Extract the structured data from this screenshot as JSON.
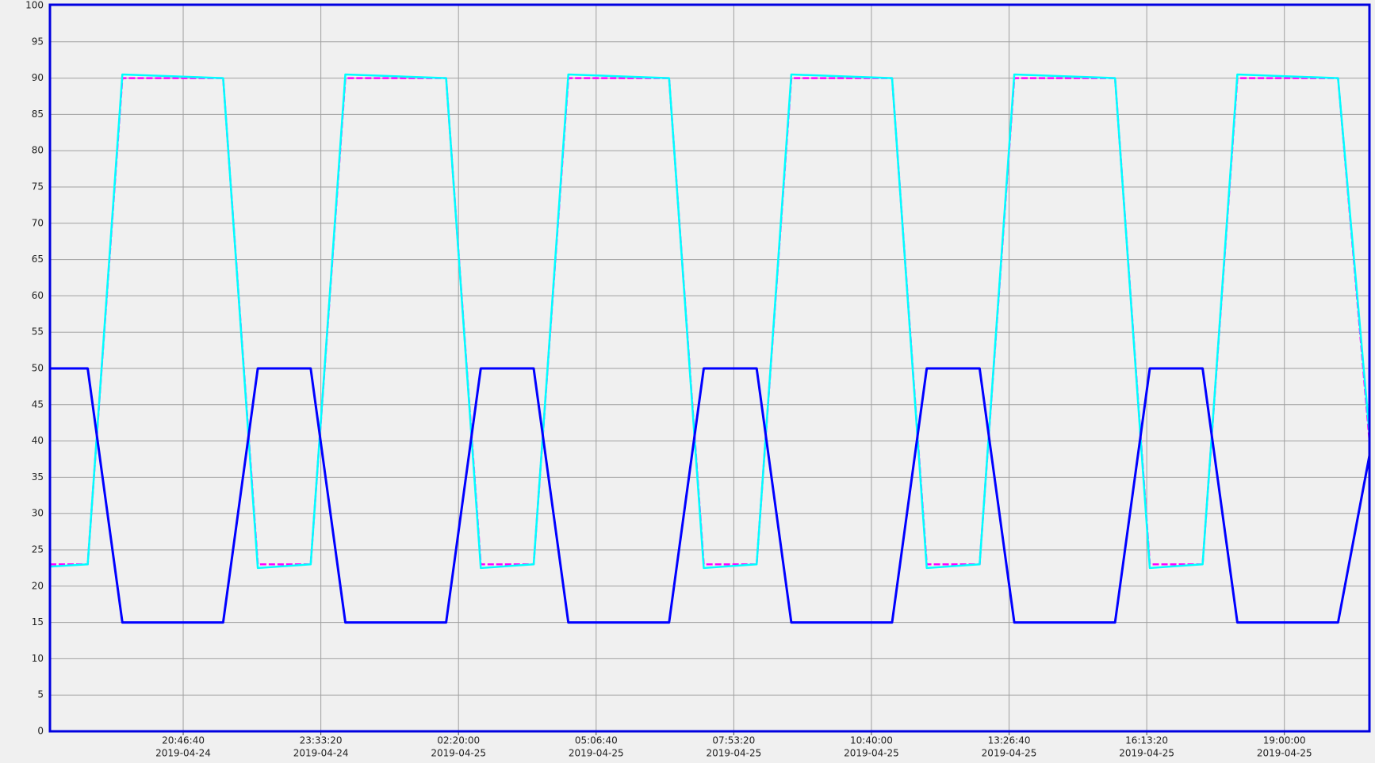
{
  "chart_data": {
    "type": "line",
    "x": [
      "2019-04-24T18:05:20",
      "2019-04-24T18:51:00",
      "2019-04-24T19:33:00",
      "2019-04-24T21:35:00",
      "2019-04-24T22:17:00",
      "2019-04-24T23:21:00",
      "2019-04-25T00:03:00",
      "2019-04-25T02:05:00",
      "2019-04-25T02:47:00",
      "2019-04-25T03:51:00",
      "2019-04-25T04:33:00",
      "2019-04-25T06:35:00",
      "2019-04-25T07:17:00",
      "2019-04-25T08:21:00",
      "2019-04-25T09:03:00",
      "2019-04-25T11:05:00",
      "2019-04-25T11:47:00",
      "2019-04-25T12:51:00",
      "2019-04-25T13:33:00",
      "2019-04-25T15:35:00",
      "2019-04-25T16:17:00",
      "2019-04-25T17:21:00",
      "2019-04-25T18:03:00",
      "2019-04-25T20:05:00",
      "2019-04-25T20:43:00"
    ],
    "series": [
      {
        "color": "#ff00ff",
        "dash": true,
        "values": [
          23,
          23,
          90,
          90,
          23,
          23,
          90,
          90,
          23,
          23,
          90,
          90,
          23,
          23,
          90,
          90,
          23,
          23,
          90,
          90,
          23,
          23,
          90,
          90,
          40
        ]
      },
      {
        "color": "#00ffff",
        "dash": false,
        "values": [
          22.7,
          23,
          90.5,
          90,
          22.5,
          23,
          90.5,
          90,
          22.5,
          23,
          90.5,
          90,
          22.5,
          23,
          90.5,
          90,
          22.5,
          23,
          90.5,
          90,
          22.5,
          23,
          90.5,
          90,
          41
        ]
      },
      {
        "color": "#0000ff",
        "dash": false,
        "values": [
          50,
          50,
          15,
          15,
          50,
          50,
          15,
          15,
          50,
          50,
          15,
          15,
          50,
          50,
          15,
          15,
          50,
          50,
          15,
          15,
          50,
          50,
          15,
          15,
          38
        ]
      }
    ],
    "xlim": [
      "2019-04-24T18:05:20",
      "2019-04-25T20:43:00"
    ],
    "xticks": [
      {
        "value": "2019-04-24T20:46:40",
        "label": "20:46:40",
        "date": "2019-04-24"
      },
      {
        "value": "2019-04-24T23:33:20",
        "label": "23:33:20",
        "date": "2019-04-24"
      },
      {
        "value": "2019-04-25T02:20:00",
        "label": "02:20:00",
        "date": "2019-04-25"
      },
      {
        "value": "2019-04-25T05:06:40",
        "label": "05:06:40",
        "date": "2019-04-25"
      },
      {
        "value": "2019-04-25T07:53:20",
        "label": "07:53:20",
        "date": "2019-04-25"
      },
      {
        "value": "2019-04-25T10:40:00",
        "label": "10:40:00",
        "date": "2019-04-25"
      },
      {
        "value": "2019-04-25T13:26:40",
        "label": "13:26:40",
        "date": "2019-04-25"
      },
      {
        "value": "2019-04-25T16:13:20",
        "label": "16:13:20",
        "date": "2019-04-25"
      },
      {
        "value": "2019-04-25T19:00:00",
        "label": "19:00:00",
        "date": "2019-04-25"
      }
    ],
    "ylim": [
      0,
      100
    ],
    "yticks": [
      0,
      5,
      10,
      15,
      20,
      25,
      30,
      35,
      40,
      45,
      50,
      55,
      60,
      65,
      70,
      75,
      80,
      85,
      90,
      95,
      100
    ],
    "grid": true
  }
}
